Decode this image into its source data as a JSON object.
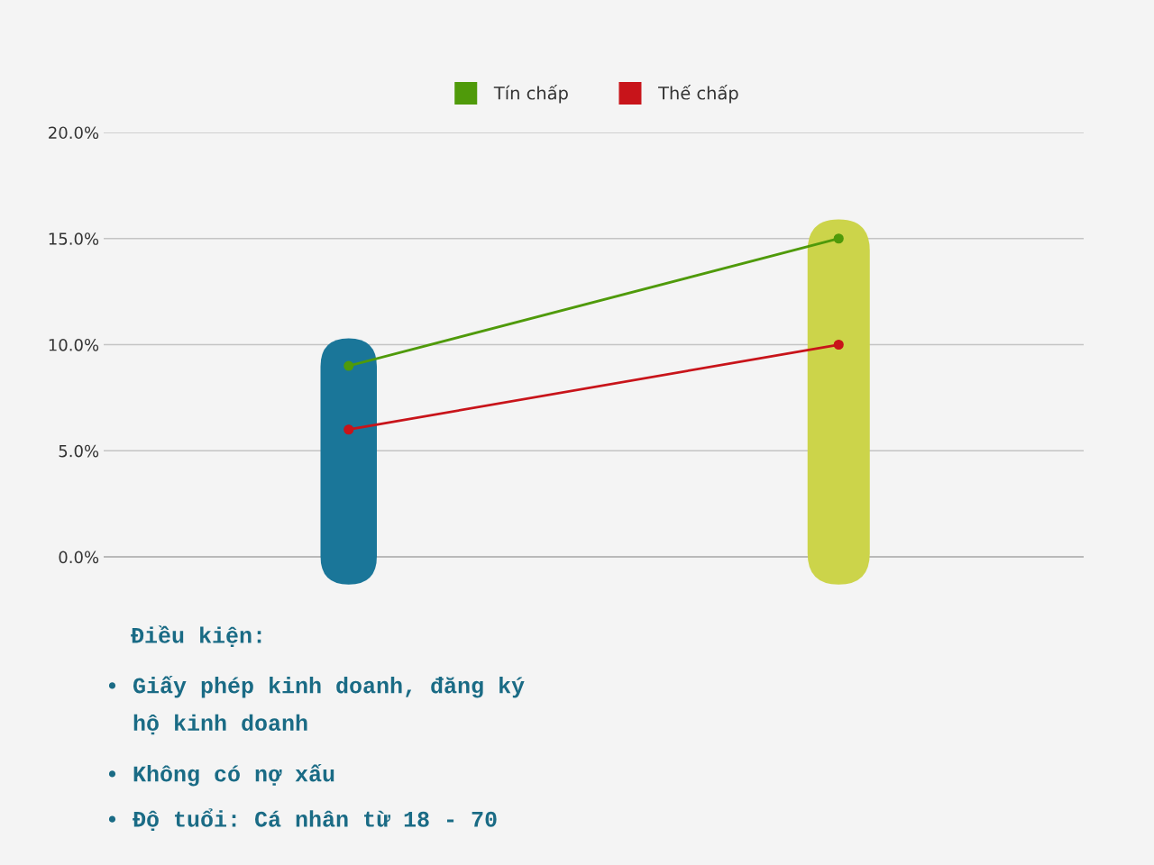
{
  "chart_data": {
    "type": "line",
    "categories": [
      null,
      null
    ],
    "series": [
      {
        "type": "bar",
        "colors": [
          "#1a7699",
          "#ccd44a"
        ],
        "base": [
          -1.3,
          -1.3
        ],
        "values": [
          11.6,
          17.2
        ]
      },
      {
        "name": "Tín chấp",
        "color": "#4f9a0a",
        "values": [
          9,
          15
        ]
      },
      {
        "name": "Thế chấp",
        "color": "#c8141a",
        "values": [
          6,
          10
        ]
      }
    ],
    "ylim": [
      -1.4,
      20
    ],
    "yticks": [
      {
        "value": 0,
        "label": "0.0%"
      },
      {
        "value": 5,
        "label": "5.0%"
      },
      {
        "value": 10,
        "label": "10.0%"
      },
      {
        "value": 15,
        "label": "15.0%"
      },
      {
        "value": 20,
        "label": "20.0%"
      }
    ],
    "ref_lines": [
      {
        "axis": "y",
        "value": 0,
        "color": "#777777"
      }
    ],
    "grid": "y",
    "legend": "top",
    "marker": "circle",
    "line_style": "solid",
    "annotations": [
      "Điều kiện:",
      "• Giấy phép kinh doanh, đăng ký\n  hộ kinh doanh",
      "• Không có nợ xấu",
      "• Độ tuổi: Cá nhân từ 18 - 70"
    ]
  }
}
